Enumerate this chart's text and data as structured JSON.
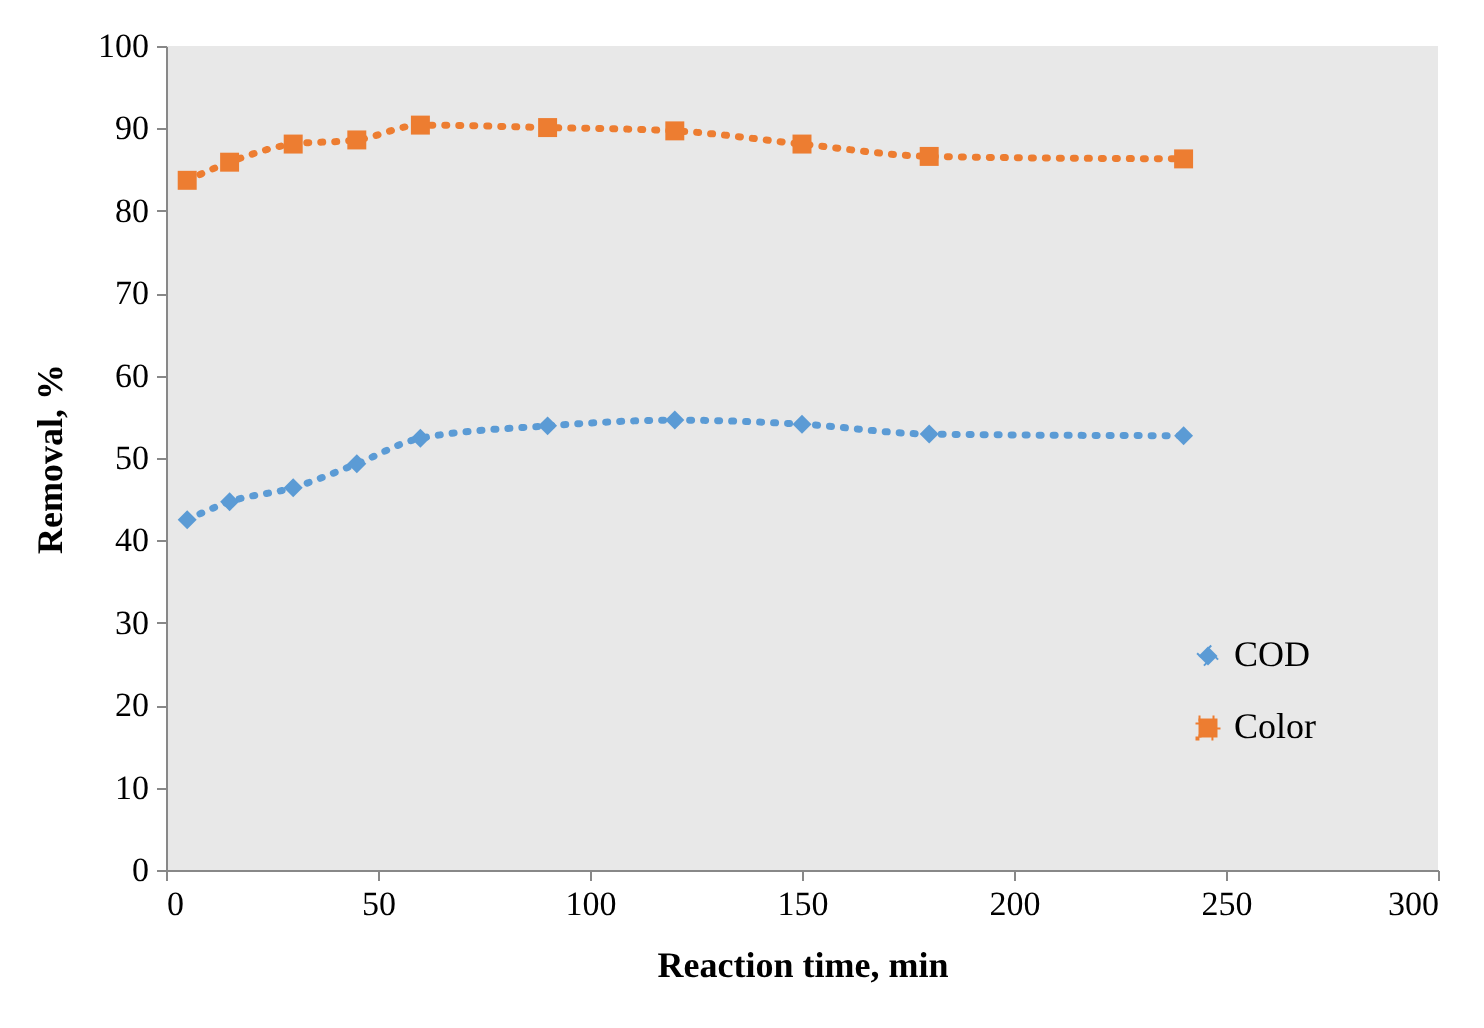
{
  "chart_data": {
    "type": "line",
    "xlabel": "Reaction time, min",
    "ylabel": "Removal, %",
    "x": [
      5,
      15,
      30,
      45,
      60,
      90,
      120,
      150,
      180,
      240
    ],
    "series": [
      {
        "name": "COD",
        "color": "#5b9bd5",
        "marker": "diamond",
        "values": [
          42.5,
          44.7,
          46.4,
          49.3,
          52.4,
          53.9,
          54.6,
          54.1,
          52.9,
          52.7
        ]
      },
      {
        "name": "Color",
        "color": "#ed7d31",
        "marker": "square",
        "values": [
          83.7,
          85.9,
          88.1,
          88.6,
          90.4,
          90.1,
          89.7,
          88.1,
          86.6,
          86.3
        ]
      }
    ],
    "xlim": [
      0,
      300
    ],
    "xticks": [
      0,
      50,
      100,
      150,
      200,
      250,
      300
    ],
    "ylim": [
      0,
      100
    ],
    "yticks": [
      0,
      10,
      20,
      30,
      40,
      50,
      60,
      70,
      80,
      90,
      100
    ],
    "line_style": "dotted",
    "grid": false,
    "legend": "bottom right"
  }
}
